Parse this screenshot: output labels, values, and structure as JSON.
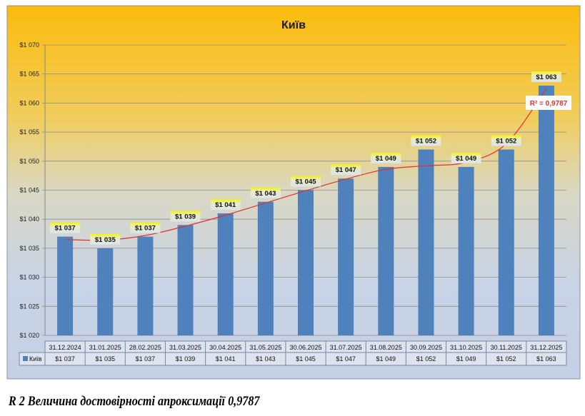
{
  "chart_data": {
    "type": "bar",
    "title": "Київ",
    "series": [
      {
        "name": "Київ",
        "color": "#4f81bd",
        "values": [
          1037,
          1035,
          1037,
          1039,
          1041,
          1043,
          1045,
          1047,
          1049,
          1052,
          1049,
          1052,
          1063
        ]
      }
    ],
    "categories": [
      "31.12.2024",
      "31.01.2025",
      "28.02.2025",
      "31.03.2025",
      "30.04.2025",
      "31.05.2025",
      "30.06.2025",
      "31.07.2025",
      "31.08.2025",
      "30.09.2025",
      "31.10.2025",
      "30.11.2025",
      "31.12.2025"
    ],
    "data_labels": [
      "$1 037",
      "$1 035",
      "$1 037",
      "$1 039",
      "$1 041",
      "$1 043",
      "$1 045",
      "$1 047",
      "$1 049",
      "$1 052",
      "$1 049",
      "$1 052",
      "$1 063"
    ],
    "ylim": [
      1020,
      1070
    ],
    "yticks": [
      1020,
      1025,
      1030,
      1035,
      1040,
      1045,
      1050,
      1055,
      1060,
      1065,
      1070
    ],
    "ytick_labels": [
      "$1 020",
      "$1 025",
      "$1 030",
      "$1 035",
      "$1 040",
      "$1 045",
      "$1 050",
      "$1 055",
      "$1 060",
      "$1 065",
      "$1 070"
    ],
    "grid": true,
    "legend": "data-table",
    "trendline": {
      "type": "polynomial",
      "color": "#e03030",
      "r2_label": "R² = 0,9787",
      "fitted": [
        1036.5,
        1036.4,
        1037.2,
        1038.8,
        1040.7,
        1042.8,
        1044.9,
        1046.9,
        1048.6,
        1049.2,
        1049.8,
        1053.0,
        1062.5
      ]
    },
    "xlabel": "",
    "ylabel": ""
  },
  "caption": "R 2 Величина достовірності апроксимації 0,9787"
}
